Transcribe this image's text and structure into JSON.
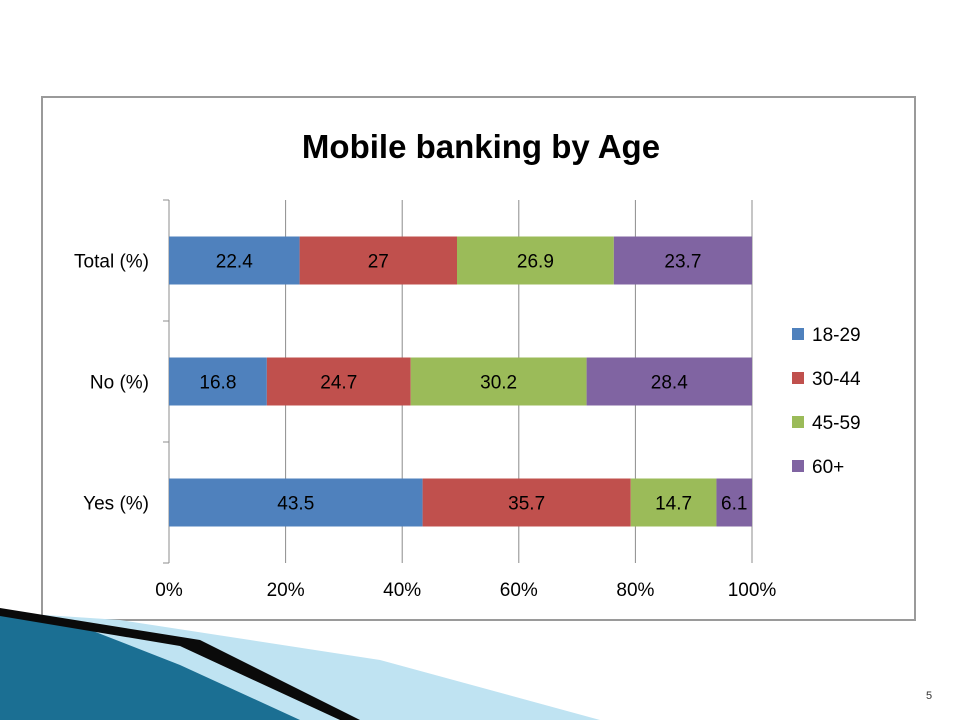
{
  "slide": {
    "number": "5"
  },
  "chart_data": {
    "type": "bar",
    "orientation": "horizontal",
    "stacked": "percent",
    "title": "Mobile banking by Age",
    "categories": [
      "Total (%)",
      "No (%)",
      "Yes (%)"
    ],
    "series": [
      {
        "name": "18-29",
        "color": "#4f81bd",
        "values": [
          22.4,
          16.8,
          43.5
        ]
      },
      {
        "name": "30-44",
        "color": "#c0504d",
        "values": [
          27,
          24.7,
          35.7
        ]
      },
      {
        "name": "45-59",
        "color": "#9bbb59",
        "values": [
          26.9,
          30.2,
          14.7
        ]
      },
      {
        "name": "60+",
        "color": "#8064a2",
        "values": [
          23.7,
          28.4,
          6.1
        ]
      }
    ],
    "xlim": [
      0,
      100
    ],
    "x_ticks": [
      "0%",
      "20%",
      "40%",
      "60%",
      "80%",
      "100%"
    ],
    "grid": true,
    "legend_position": "right"
  },
  "colors": {
    "decor_dark": "#1b6f93",
    "decor_light": "#bfe3f2",
    "decor_black": "#0a0a0a"
  }
}
